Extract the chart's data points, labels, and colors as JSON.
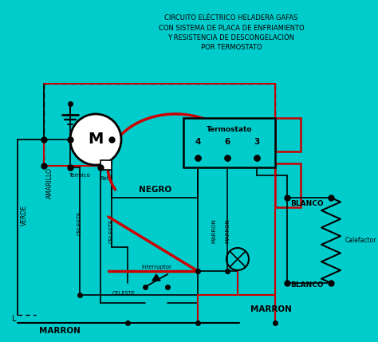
{
  "bg_color": "#00CCCC",
  "title_lines": [
    "CIRCUITO ELÉCTRICO HELADERA GAFAS",
    "CON SISTEMA DE PLACA DE ENFRIAMIENTO",
    "Y RESISTENCIA DE DESCONGELACIÓN",
    "POR TERMOSTATO"
  ],
  "wire_black": "#000000",
  "wire_red": "#CC0000",
  "text_color": "#000000",
  "label_negro": "NEGRO",
  "label_marron": "MARRON",
  "label_blanco": "BLANCO",
  "label_celeste": "CELESTE",
  "label_amarillo": "AMARILLO",
  "label_verde": "VERDE",
  "label_termico": "Termico",
  "label_rele": "Relé",
  "label_interruptor": "Interruptor",
  "label_termostato": "Termostato",
  "label_calefactor": "Calefactor",
  "label_L": "L",
  "label_motor": "M",
  "termost_pins": [
    "4",
    "6",
    "3"
  ],
  "figsize": [
    4.74,
    4.29
  ],
  "dpi": 100
}
